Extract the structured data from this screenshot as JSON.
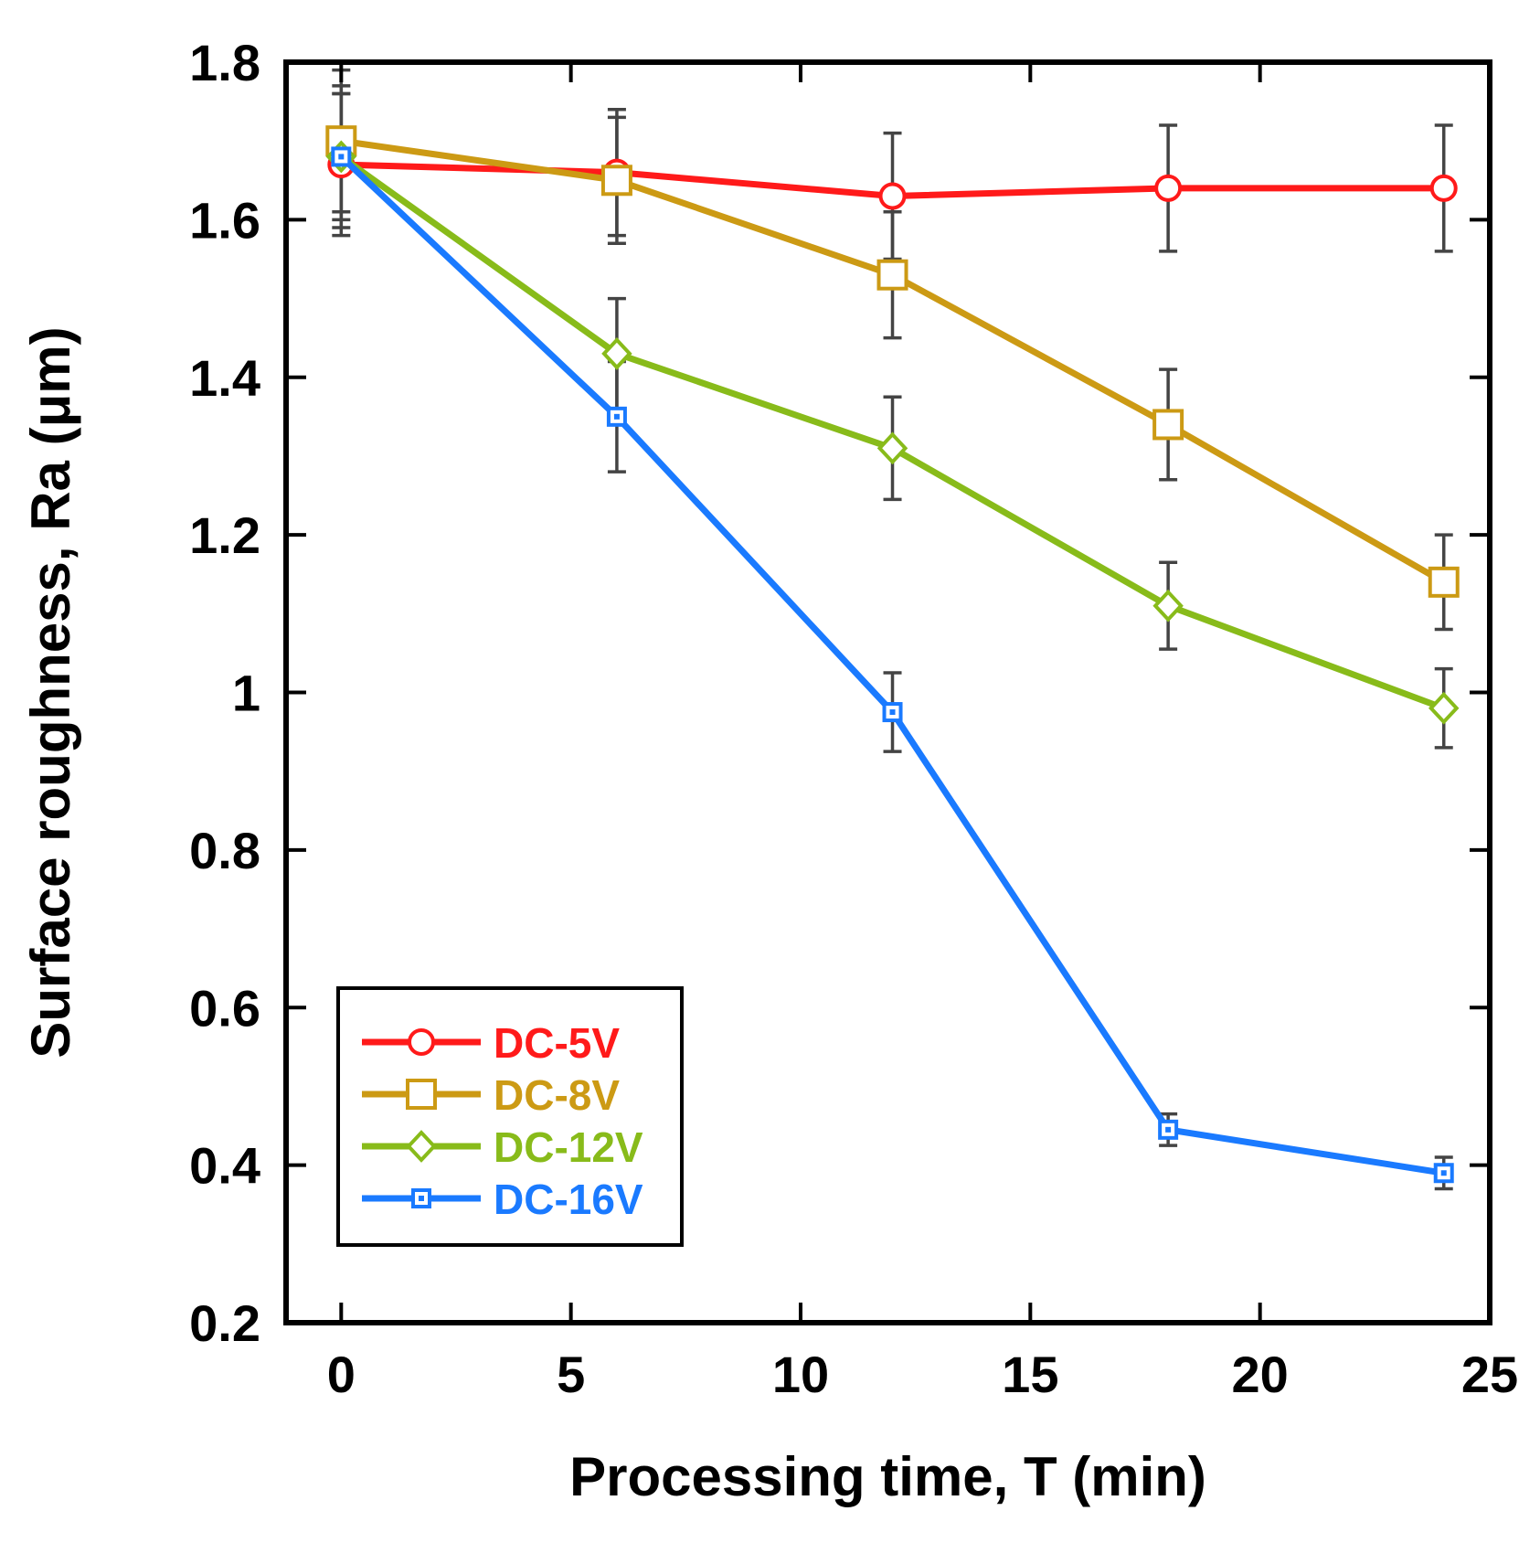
{
  "chart_data": {
    "type": "line",
    "title": "",
    "xlabel": "Processing time, T (min)",
    "ylabel": "Surface roughness, Ra (μm)",
    "xlim": [
      -1.2,
      25
    ],
    "ylim": [
      0.2,
      1.8
    ],
    "xticks": [
      0,
      5,
      10,
      15,
      20,
      25
    ],
    "xtick_labels": [
      "0",
      "5",
      "10",
      "15",
      "20",
      "25"
    ],
    "yticks": [
      0.2,
      0.4,
      0.6,
      0.8,
      1.0,
      1.2,
      1.4,
      1.6,
      1.8
    ],
    "ytick_labels": [
      "0.2",
      "0.4",
      "0.6",
      "0.8",
      "1",
      "1.2",
      "1.4",
      "1.6",
      "1.8"
    ],
    "grid": false,
    "legend_position": "bottom-left",
    "x": [
      0,
      6,
      12,
      18,
      24
    ],
    "series": [
      {
        "name": "DC-5V",
        "color": "#ff1a1a",
        "marker": "circle",
        "values": [
          1.67,
          1.66,
          1.63,
          1.64,
          1.64
        ],
        "errors": [
          0.09,
          0.08,
          0.08,
          0.08,
          0.08
        ]
      },
      {
        "name": "DC-8V",
        "color": "#cc9a14",
        "marker": "square",
        "values": [
          1.7,
          1.65,
          1.53,
          1.34,
          1.14
        ],
        "errors": [
          0.09,
          0.08,
          0.08,
          0.07,
          0.06
        ]
      },
      {
        "name": "DC-12V",
        "color": "#88bb1a",
        "marker": "diamond",
        "values": [
          1.68,
          1.43,
          1.31,
          1.11,
          0.98
        ],
        "errors": [
          0.08,
          0.07,
          0.065,
          0.055,
          0.05
        ]
      },
      {
        "name": "DC-16V",
        "color": "#1a7aff",
        "marker": "small-square",
        "values": [
          1.68,
          1.35,
          0.975,
          0.445,
          0.39
        ],
        "errors": [
          0.09,
          0.07,
          0.05,
          0.02,
          0.02
        ]
      }
    ]
  }
}
